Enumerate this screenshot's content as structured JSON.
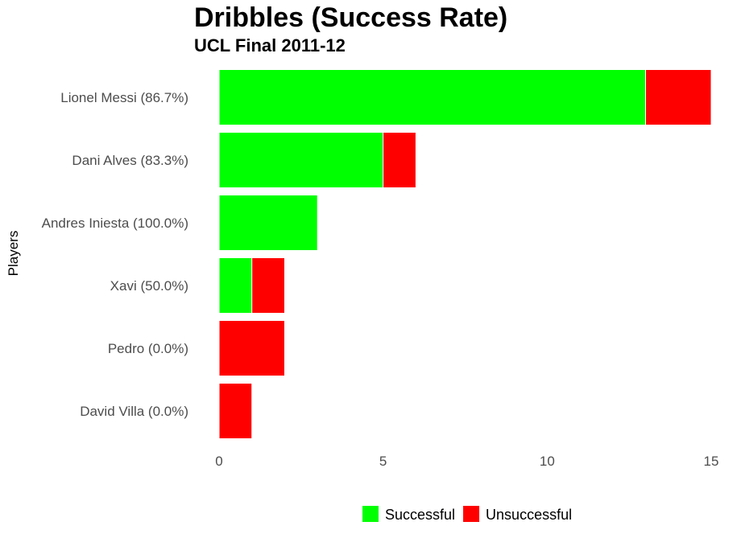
{
  "chart_data": {
    "type": "bar",
    "orientation": "horizontal",
    "stacked": true,
    "title": "Dribbles (Success Rate)",
    "subtitle": "UCL Final 2011-12",
    "xlabel": "",
    "ylabel": "Players",
    "xlim": [
      0,
      15
    ],
    "x_ticks": [
      0,
      5,
      10,
      15
    ],
    "grid": false,
    "legend_position": "bottom",
    "categories": [
      "Lionel Messi (86.7%)",
      "Dani Alves (83.3%)",
      "Andres Iniesta (100.0%)",
      "Xavi (50.0%)",
      "Pedro (0.0%)",
      "David Villa (0.0%)"
    ],
    "series": [
      {
        "name": "Successful",
        "color": "#00ff00",
        "values": [
          13,
          5,
          3,
          1,
          0,
          0
        ]
      },
      {
        "name": "Unsuccessful",
        "color": "#ff0000",
        "values": [
          2,
          1,
          0,
          1,
          2,
          1
        ]
      }
    ]
  }
}
